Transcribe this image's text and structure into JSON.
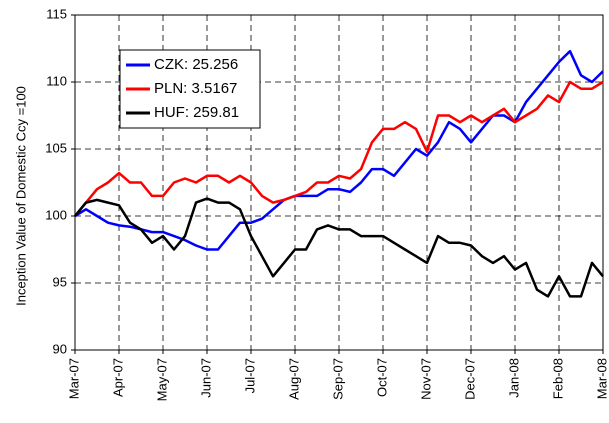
{
  "chart_data": {
    "type": "line",
    "y_label": "Inception Value of Domestic Ccy =100",
    "categories": [
      "Mar-07",
      null,
      null,
      null,
      "Apr-07",
      null,
      null,
      null,
      "May-07",
      null,
      null,
      null,
      "Jun-07",
      null,
      null,
      null,
      "Jul-07",
      null,
      null,
      null,
      "Aug-07",
      null,
      null,
      null,
      "Sep-07",
      null,
      null,
      null,
      "Oct-07",
      null,
      null,
      null,
      "Nov-07",
      null,
      null,
      null,
      "Dec-07",
      null,
      null,
      null,
      "Jan-08",
      null,
      null,
      null,
      "Feb-08",
      null,
      null,
      null,
      "Mar-08"
    ],
    "series": [
      {
        "name": "CZK: 25.256",
        "color": "#0000ff",
        "values": [
          100,
          100.5,
          100,
          99.5,
          99.3,
          99.2,
          99,
          98.8,
          98.8,
          98.5,
          98.2,
          97.8,
          97.5,
          97.5,
          98.5,
          99.5,
          99.5,
          99.8,
          100.5,
          101.2,
          101.5,
          101.5,
          101.5,
          102,
          102,
          101.8,
          102.5,
          103.5,
          103.5,
          103,
          104,
          105,
          104.5,
          105.5,
          107,
          106.5,
          105.5,
          106.5,
          107.5,
          107.5,
          107,
          108.5,
          109.5,
          110.5,
          111.5,
          112.3,
          110.5,
          110,
          110.8
        ]
      },
      {
        "name": "PLN: 3.5167",
        "color": "#ff0000",
        "values": [
          100,
          101,
          102,
          102.5,
          103.2,
          102.5,
          102.5,
          101.5,
          101.5,
          102.5,
          102.8,
          102.5,
          103,
          103,
          102.5,
          103,
          102.5,
          101.5,
          101,
          101.2,
          101.5,
          101.8,
          102.5,
          102.5,
          103,
          102.8,
          103.5,
          105.5,
          106.5,
          106.5,
          107,
          106.5,
          104.8,
          107.5,
          107.5,
          107,
          107.5,
          107,
          107.5,
          108,
          107,
          107.5,
          108,
          109,
          108.5,
          110,
          109.5,
          109.5,
          110
        ]
      },
      {
        "name": "HUF: 259.81",
        "color": "#000000",
        "values": [
          100,
          101,
          101.2,
          101,
          100.8,
          99.5,
          99,
          98,
          98.5,
          97.5,
          98.5,
          101,
          101.3,
          101,
          101,
          100.5,
          98.5,
          97,
          95.5,
          96.5,
          97.5,
          97.5,
          99,
          99.3,
          99,
          99,
          98.5,
          98.5,
          98.5,
          98,
          97.5,
          97,
          96.5,
          98.5,
          98,
          98,
          97.8,
          97,
          96.5,
          97,
          96,
          96.5,
          94.5,
          94,
          95.5,
          94,
          94,
          96.5,
          95.5
        ]
      }
    ],
    "ylim": [
      90,
      115
    ],
    "yticks": [
      90,
      95,
      100,
      105,
      110,
      115
    ],
    "grid": true
  }
}
